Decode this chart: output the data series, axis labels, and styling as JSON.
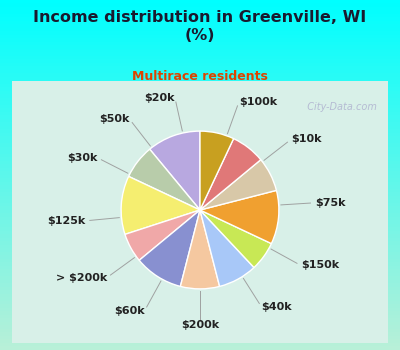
{
  "title": "Income distribution in Greenville, WI\n(%)",
  "subtitle": "Multirace residents",
  "title_color": "#1a1a2e",
  "subtitle_color": "#dd4400",
  "bg_color": "#00ffff",
  "chart_bg_color": "#d8f0e8",
  "labels": [
    "$100k",
    "$10k",
    "$75k",
    "$150k",
    "$40k",
    "$200k",
    "$60k",
    "> $200k",
    "$125k",
    "$30k",
    "$50k",
    "$20k"
  ],
  "values": [
    11,
    7,
    12,
    6,
    10,
    8,
    8,
    6,
    11,
    7,
    7,
    7
  ],
  "colors": [
    "#b8a8e0",
    "#b8ccaa",
    "#f5ee70",
    "#f0a8a8",
    "#8890d0",
    "#f5c8a0",
    "#a8c8f8",
    "#c8e855",
    "#f0a030",
    "#d8c8a8",
    "#e07878",
    "#c8a020"
  ],
  "label_color": "#222222",
  "label_fontsize": 8,
  "wedge_linewidth": 1.0,
  "wedge_edgecolor": "#ffffff",
  "startangle": 90,
  "watermark": "  City-Data.com"
}
